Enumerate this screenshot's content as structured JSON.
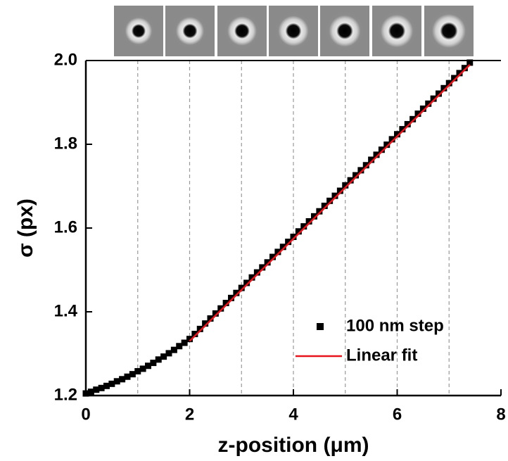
{
  "chart_data": {
    "type": "scatter",
    "xlabel": "z-position (μm)",
    "ylabel": "σ (px)",
    "xlim": [
      0,
      8
    ],
    "xticks": [
      0,
      2,
      4,
      6,
      8
    ],
    "ylim": [
      1.2,
      2.0
    ],
    "yticks": [
      1.2,
      1.4,
      1.6,
      1.8,
      {
        "value": 2.0,
        "label": "2.0"
      }
    ],
    "vlines": [
      1,
      2,
      3,
      4,
      5,
      6,
      7
    ],
    "legend": "lower right",
    "series": [
      {
        "name": "100 nm step",
        "color": "#000000",
        "mode": "markers",
        "x": [
          0,
          0.1,
          0.2,
          0.3,
          0.4,
          0.5,
          0.6,
          0.7,
          0.8,
          0.9,
          1,
          1.1,
          1.2,
          1.3,
          1.4,
          1.5,
          1.6,
          1.7,
          1.8,
          1.9,
          2,
          2.1,
          2.2,
          2.3,
          2.4,
          2.5,
          2.6,
          2.7,
          2.8,
          2.9,
          3,
          3.1,
          3.2,
          3.3,
          3.4,
          3.5,
          3.6,
          3.7,
          3.8,
          3.9,
          4,
          4.1,
          4.2,
          4.3,
          4.4,
          4.5,
          4.6,
          4.7,
          4.8,
          4.9,
          5,
          5.1,
          5.2,
          5.3,
          5.4,
          5.5,
          5.6,
          5.7,
          5.8,
          5.9,
          6,
          6.1,
          6.2,
          6.3,
          6.4,
          6.5,
          6.6,
          6.7,
          6.8,
          6.9,
          7,
          7.1,
          7.2,
          7.3,
          7.4
        ],
        "values": [
          1.205,
          1.209,
          1.214,
          1.218,
          1.223,
          1.228,
          1.234,
          1.239,
          1.245,
          1.251,
          1.258,
          1.264,
          1.271,
          1.278,
          1.286,
          1.293,
          1.301,
          1.309,
          1.318,
          1.326,
          1.335,
          1.347,
          1.359,
          1.372,
          1.384,
          1.396,
          1.408,
          1.421,
          1.433,
          1.445,
          1.457,
          1.469,
          1.482,
          1.494,
          1.506,
          1.518,
          1.531,
          1.543,
          1.555,
          1.567,
          1.579,
          1.592,
          1.604,
          1.616,
          1.628,
          1.64,
          1.653,
          1.665,
          1.677,
          1.689,
          1.702,
          1.714,
          1.726,
          1.738,
          1.75,
          1.763,
          1.775,
          1.787,
          1.799,
          1.812,
          1.824,
          1.836,
          1.848,
          1.86,
          1.873,
          1.885,
          1.897,
          1.909,
          1.921,
          1.934,
          1.946,
          1.958,
          1.97,
          1.982,
          1.995
        ]
      },
      {
        "name": "Linear fit",
        "color": "#e8141b",
        "mode": "line",
        "x": [
          2,
          7.4
        ],
        "values": [
          1.33,
          1.99
        ]
      }
    ]
  }
}
